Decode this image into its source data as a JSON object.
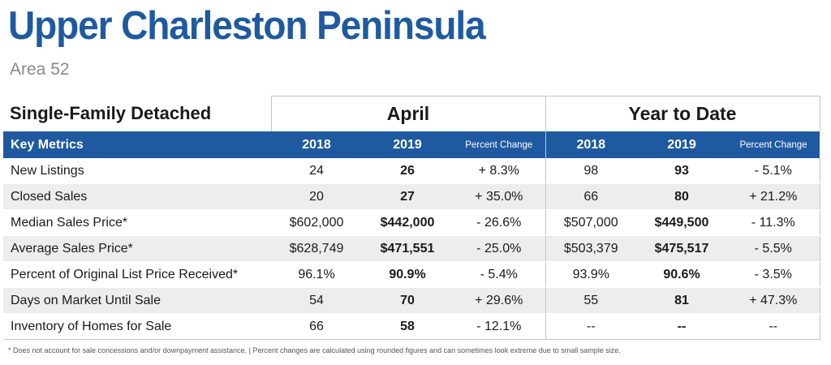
{
  "header": {
    "title": "Upper Charleston Peninsula",
    "subtitle": "Area 52"
  },
  "table": {
    "section_title": "Single-Family Detached",
    "groups": [
      "April",
      "Year to Date"
    ],
    "columns": {
      "key": "Key Metrics",
      "april_2018": "2018",
      "april_2019": "2019",
      "april_pct": "Percent Change",
      "ytd_2018": "2018",
      "ytd_2019": "2019",
      "ytd_pct": "Percent Change"
    },
    "rows": [
      {
        "label": "New Listings",
        "a18": "24",
        "a19": "26",
        "apct": "+ 8.3%",
        "y18": "98",
        "y19": "93",
        "ypct": "- 5.1%"
      },
      {
        "label": "Closed Sales",
        "a18": "20",
        "a19": "27",
        "apct": "+ 35.0%",
        "y18": "66",
        "y19": "80",
        "ypct": "+ 21.2%"
      },
      {
        "label": "Median Sales Price*",
        "a18": "$602,000",
        "a19": "$442,000",
        "apct": "- 26.6%",
        "y18": "$507,000",
        "y19": "$449,500",
        "ypct": "- 11.3%"
      },
      {
        "label": "Average Sales Price*",
        "a18": "$628,749",
        "a19": "$471,551",
        "apct": "- 25.0%",
        "y18": "$503,379",
        "y19": "$475,517",
        "ypct": "- 5.5%"
      },
      {
        "label": "Percent of Original List Price Received*",
        "a18": "96.1%",
        "a19": "90.9%",
        "apct": "- 5.4%",
        "y18": "93.9%",
        "y19": "90.6%",
        "ypct": "- 3.5%"
      },
      {
        "label": "Days on Market Until Sale",
        "a18": "54",
        "a19": "70",
        "apct": "+ 29.6%",
        "y18": "55",
        "y19": "81",
        "ypct": "+ 47.3%"
      },
      {
        "label": "Inventory of Homes for Sale",
        "a18": "66",
        "a19": "58",
        "apct": "- 12.1%",
        "y18": "--",
        "y19": "--",
        "ypct": "--"
      }
    ]
  },
  "footnote": "* Does not account for sale concessions and/or downpayment assistance.  |  Percent changes are calculated using rounded figures and can sometimes look extreme due to small sample size.",
  "colors": {
    "brand_blue": "#1f5aa0",
    "row_stripe": "#ededed",
    "subtitle_gray": "#8a8a8a"
  }
}
